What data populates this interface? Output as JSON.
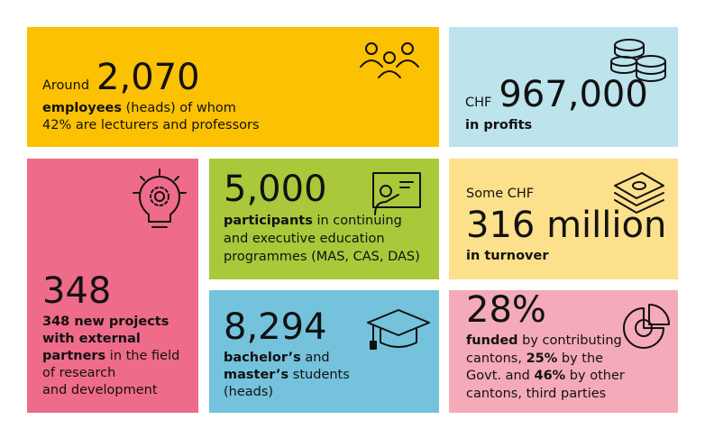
{
  "tiles": [
    {
      "prefix": "Around",
      "figure": "2,070",
      "lines": [
        [
          {
            "bold": "employees"
          },
          " (heads) of whom"
        ],
        [
          "42% are lecturers and professors"
        ]
      ]
    },
    {
      "prefix": "CHF",
      "figure": "967,000",
      "lines": [
        [
          {
            "bold": "in profits"
          }
        ]
      ]
    },
    {
      "figure": "348",
      "lines": [
        [
          {
            "bold": "348 new projects"
          }
        ],
        [
          {
            "bold": "with external"
          }
        ],
        [
          {
            "bold": "partners"
          },
          " in the field"
        ],
        [
          "of research"
        ],
        [
          "and development"
        ]
      ]
    },
    {
      "figure": "5,000",
      "lines": [
        [
          {
            "bold": "participants"
          },
          " in continuing"
        ],
        [
          "and executive education"
        ],
        [
          "programmes (MAS, CAS, DAS)"
        ]
      ]
    },
    {
      "prefix": "Some CHF",
      "figure": "316 million",
      "lines": [
        [
          {
            "bold": "in turnover"
          }
        ]
      ]
    },
    {
      "figure": "8,294",
      "lines": [
        [
          {
            "bold": "bachelor’s"
          },
          " and"
        ],
        [
          {
            "bold": "master’s"
          },
          " students"
        ],
        [
          "(heads)"
        ]
      ]
    },
    {
      "figure": "28%",
      "lines": [
        [
          {
            "bold": "funded"
          },
          " by contributing"
        ],
        [
          "cantons, ",
          {
            "bold": "25%"
          },
          " by the"
        ],
        [
          "Govt. and ",
          {
            "bold": "46%"
          },
          " by other"
        ],
        [
          "cantons, third parties"
        ]
      ]
    }
  ]
}
